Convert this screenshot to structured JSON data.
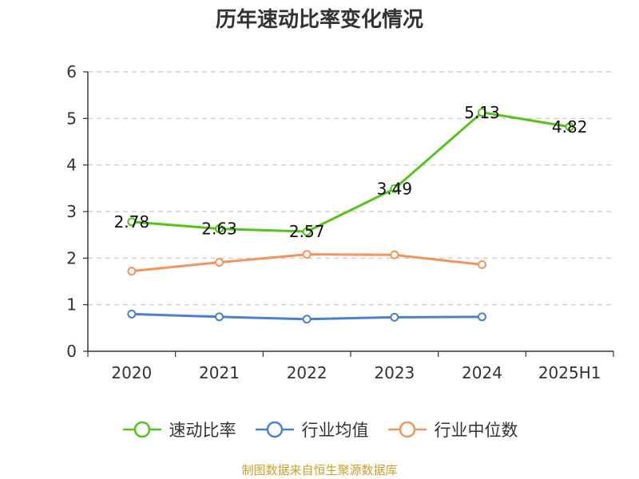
{
  "chart_data": {
    "type": "line",
    "title": "历年速动比率变化情况",
    "categories": [
      "2020",
      "2021",
      "2022",
      "2023",
      "2024",
      "2025H1"
    ],
    "yticks": [
      "0",
      "1",
      "2",
      "3",
      "4",
      "5",
      "6"
    ],
    "ylim": [
      0,
      6
    ],
    "grid": true,
    "legend_position": "bottom",
    "series": [
      {
        "name": "速动比率",
        "color": "#52c41a",
        "show_labels": true,
        "values": [
          2.78,
          2.63,
          2.57,
          3.49,
          5.13,
          4.82
        ],
        "labels": [
          "2.78",
          "2.63",
          "2.57",
          "3.49",
          "5.13",
          "4.82"
        ]
      },
      {
        "name": "行业均值",
        "color": "#4a7fd6",
        "show_labels": false,
        "values": [
          0.8,
          0.74,
          0.69,
          0.73,
          0.74,
          null
        ]
      },
      {
        "name": "行业中位数",
        "color": "#f4935b",
        "show_labels": false,
        "values": [
          1.72,
          1.91,
          2.08,
          2.07,
          1.86,
          null
        ]
      }
    ]
  },
  "source": "制图数据来自恒生聚源数据库"
}
